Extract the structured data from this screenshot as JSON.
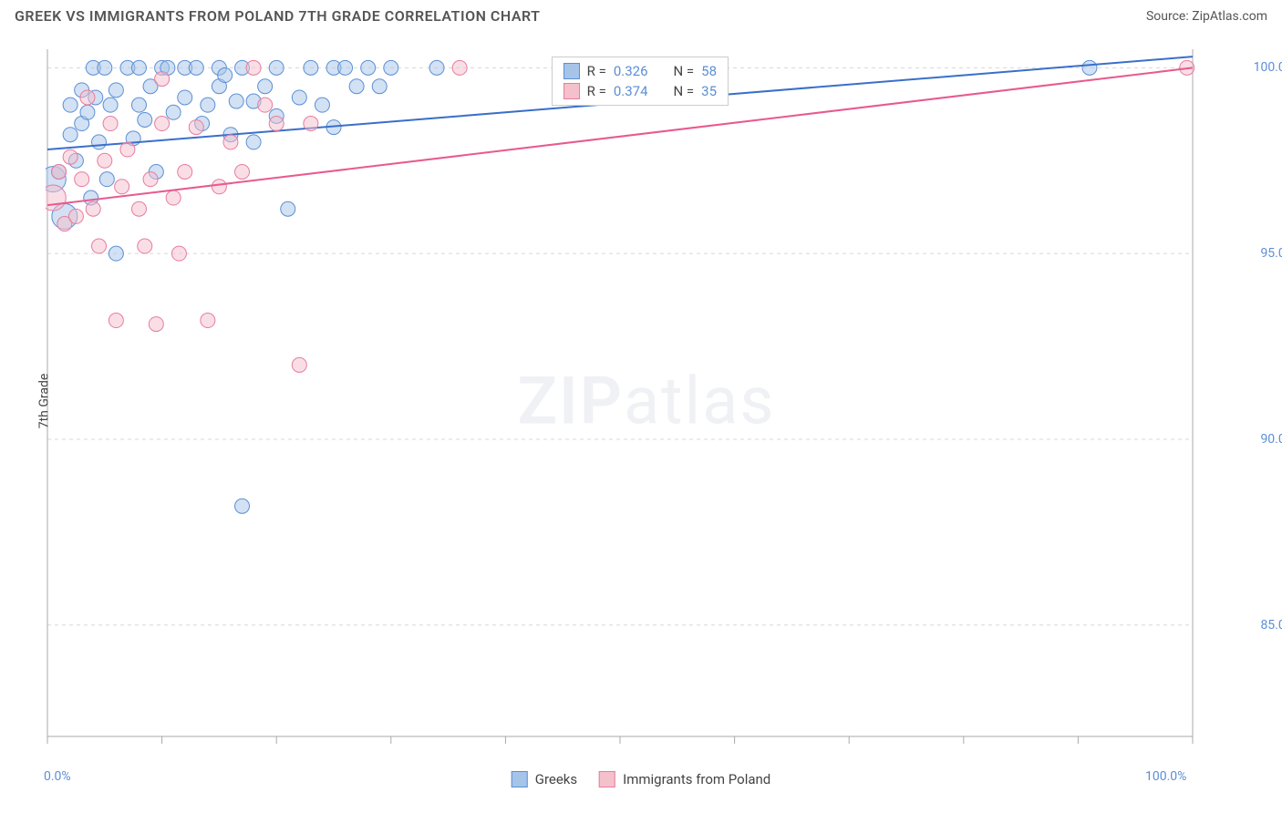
{
  "header": {
    "title": "GREEK VS IMMIGRANTS FROM POLAND 7TH GRADE CORRELATION CHART",
    "source": "Source: ZipAtlas.com"
  },
  "watermark_zip": "ZIP",
  "watermark_atlas": "atlas",
  "chart": {
    "type": "scatter",
    "y_axis_label": "7th Grade",
    "xlim": [
      0,
      100
    ],
    "ylim": [
      82,
      100.5
    ],
    "x_ticks": [
      0,
      10,
      20,
      30,
      40,
      50,
      60,
      70,
      80,
      90,
      100
    ],
    "x_tick_labels": {
      "0": "0.0%",
      "100": "100.0%"
    },
    "y_ticks": [
      85,
      90,
      95,
      100
    ],
    "y_tick_labels": {
      "85": "85.0%",
      "90": "90.0%",
      "95": "95.0%",
      "100": "100.0%"
    },
    "grid_color": "#d8d8d8",
    "axis_color": "#aaaaaa",
    "background_color": "#ffffff",
    "marker_radius": 8,
    "marker_radius_large": 14,
    "marker_opacity": 0.5,
    "line_width": 2,
    "series": [
      {
        "name": "Greeks",
        "color_fill": "#a6c4e8",
        "color_stroke": "#5b8fd6",
        "line_color": "#3a6fc9",
        "R_label": "R =",
        "R": "0.326",
        "N_label": "N =",
        "N": "58",
        "trend": {
          "x1": 0,
          "y1": 97.8,
          "x2": 100,
          "y2": 100.3
        },
        "points": [
          {
            "x": 0.5,
            "y": 97.0,
            "r": 14
          },
          {
            "x": 1,
            "y": 97.2
          },
          {
            "x": 1.5,
            "y": 96.0,
            "r": 14
          },
          {
            "x": 2,
            "y": 98.2
          },
          {
            "x": 2,
            "y": 99.0
          },
          {
            "x": 2.5,
            "y": 97.5
          },
          {
            "x": 3,
            "y": 99.4
          },
          {
            "x": 3,
            "y": 98.5
          },
          {
            "x": 3.5,
            "y": 98.8
          },
          {
            "x": 3.8,
            "y": 96.5
          },
          {
            "x": 4,
            "y": 100.0
          },
          {
            "x": 4.2,
            "y": 99.2
          },
          {
            "x": 4.5,
            "y": 98.0
          },
          {
            "x": 5,
            "y": 100.0
          },
          {
            "x": 5.2,
            "y": 97.0
          },
          {
            "x": 5.5,
            "y": 99.0
          },
          {
            "x": 6,
            "y": 99.4
          },
          {
            "x": 6,
            "y": 95.0
          },
          {
            "x": 7,
            "y": 100.0
          },
          {
            "x": 7.5,
            "y": 98.1
          },
          {
            "x": 8,
            "y": 99.0
          },
          {
            "x": 8,
            "y": 100.0
          },
          {
            "x": 8.5,
            "y": 98.6
          },
          {
            "x": 9,
            "y": 99.5
          },
          {
            "x": 9.5,
            "y": 97.2
          },
          {
            "x": 10,
            "y": 100.0
          },
          {
            "x": 10.5,
            "y": 100.0
          },
          {
            "x": 11,
            "y": 98.8
          },
          {
            "x": 12,
            "y": 100.0
          },
          {
            "x": 12,
            "y": 99.2
          },
          {
            "x": 13,
            "y": 100.0
          },
          {
            "x": 13.5,
            "y": 98.5
          },
          {
            "x": 14,
            "y": 99.0
          },
          {
            "x": 15,
            "y": 100.0
          },
          {
            "x": 15,
            "y": 99.5
          },
          {
            "x": 16,
            "y": 98.2
          },
          {
            "x": 16.5,
            "y": 99.1
          },
          {
            "x": 17,
            "y": 100.0
          },
          {
            "x": 18,
            "y": 99.1
          },
          {
            "x": 18,
            "y": 98.0
          },
          {
            "x": 19,
            "y": 99.5
          },
          {
            "x": 20,
            "y": 100.0
          },
          {
            "x": 20,
            "y": 98.7
          },
          {
            "x": 21,
            "y": 96.2
          },
          {
            "x": 22,
            "y": 99.2
          },
          {
            "x": 23,
            "y": 100.0
          },
          {
            "x": 24,
            "y": 99.0
          },
          {
            "x": 25,
            "y": 100.0
          },
          {
            "x": 25,
            "y": 98.4
          },
          {
            "x": 26,
            "y": 100.0
          },
          {
            "x": 27,
            "y": 99.5
          },
          {
            "x": 28,
            "y": 100.0
          },
          {
            "x": 29,
            "y": 99.5
          },
          {
            "x": 30,
            "y": 100.0
          },
          {
            "x": 34,
            "y": 100.0
          },
          {
            "x": 17,
            "y": 88.2
          },
          {
            "x": 15.5,
            "y": 99.8
          },
          {
            "x": 91,
            "y": 100.0
          }
        ]
      },
      {
        "name": "Immigrants from Poland",
        "color_fill": "#f4c0cc",
        "color_stroke": "#e87ba0",
        "line_color": "#e85a8f",
        "R_label": "R =",
        "R": "0.374",
        "N_label": "N =",
        "N": "35",
        "trend": {
          "x1": 0,
          "y1": 96.3,
          "x2": 100,
          "y2": 100.0
        },
        "points": [
          {
            "x": 0.5,
            "y": 96.5,
            "r": 14
          },
          {
            "x": 1,
            "y": 97.2
          },
          {
            "x": 1.5,
            "y": 95.8
          },
          {
            "x": 2,
            "y": 97.6
          },
          {
            "x": 2.5,
            "y": 96.0
          },
          {
            "x": 3,
            "y": 97.0
          },
          {
            "x": 3.5,
            "y": 99.2
          },
          {
            "x": 4,
            "y": 96.2
          },
          {
            "x": 4.5,
            "y": 95.2
          },
          {
            "x": 5,
            "y": 97.5
          },
          {
            "x": 5.5,
            "y": 98.5
          },
          {
            "x": 6,
            "y": 93.2
          },
          {
            "x": 6.5,
            "y": 96.8
          },
          {
            "x": 7,
            "y": 97.8
          },
          {
            "x": 8,
            "y": 96.2
          },
          {
            "x": 8.5,
            "y": 95.2
          },
          {
            "x": 9,
            "y": 97.0
          },
          {
            "x": 9.5,
            "y": 93.1
          },
          {
            "x": 10,
            "y": 98.5
          },
          {
            "x": 10,
            "y": 99.7
          },
          {
            "x": 11,
            "y": 96.5
          },
          {
            "x": 11.5,
            "y": 95.0
          },
          {
            "x": 12,
            "y": 97.2
          },
          {
            "x": 13,
            "y": 98.4
          },
          {
            "x": 14,
            "y": 93.2
          },
          {
            "x": 15,
            "y": 96.8
          },
          {
            "x": 16,
            "y": 98.0
          },
          {
            "x": 17,
            "y": 97.2
          },
          {
            "x": 18,
            "y": 100.0
          },
          {
            "x": 19,
            "y": 99.0
          },
          {
            "x": 20,
            "y": 98.5
          },
          {
            "x": 22,
            "y": 92.0
          },
          {
            "x": 23,
            "y": 98.5
          },
          {
            "x": 36,
            "y": 100.0
          },
          {
            "x": 99.5,
            "y": 100.0
          }
        ]
      }
    ]
  },
  "bottom_legend": {
    "series1": "Greeks",
    "series2": "Immigrants from Poland"
  }
}
